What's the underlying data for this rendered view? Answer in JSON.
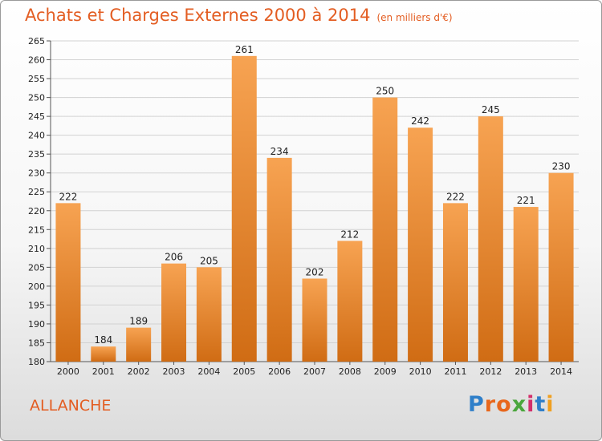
{
  "header": {
    "title": "Achats et Charges Externes 2000 à 2014",
    "unit": "(en milliers d'€)"
  },
  "footer": {
    "commune": "ALLANCHE",
    "logo_text": "Proxiti"
  },
  "colors": {
    "title": "#e35d22",
    "bar_top": "#f7a352",
    "bar_bottom": "#d06c14",
    "grid": "#d2d2d2",
    "logo": [
      "#2f7fc9",
      "#e8671c",
      "#e8671c",
      "#4aa63c",
      "#d32f6b",
      "#2f7fc9",
      "#f0a020"
    ]
  },
  "chart_data": {
    "type": "bar",
    "categories": [
      "2000",
      "2001",
      "2002",
      "2003",
      "2004",
      "2005",
      "2006",
      "2007",
      "2008",
      "2009",
      "2010",
      "2011",
      "2012",
      "2013",
      "2014"
    ],
    "values": [
      222,
      184,
      189,
      206,
      205,
      261,
      234,
      202,
      212,
      250,
      242,
      222,
      245,
      221,
      230
    ],
    "ylim": [
      180,
      265
    ],
    "yticks": [
      180,
      185,
      190,
      195,
      200,
      205,
      210,
      215,
      220,
      225,
      230,
      235,
      240,
      245,
      250,
      255,
      260,
      265
    ],
    "grid": true
  }
}
